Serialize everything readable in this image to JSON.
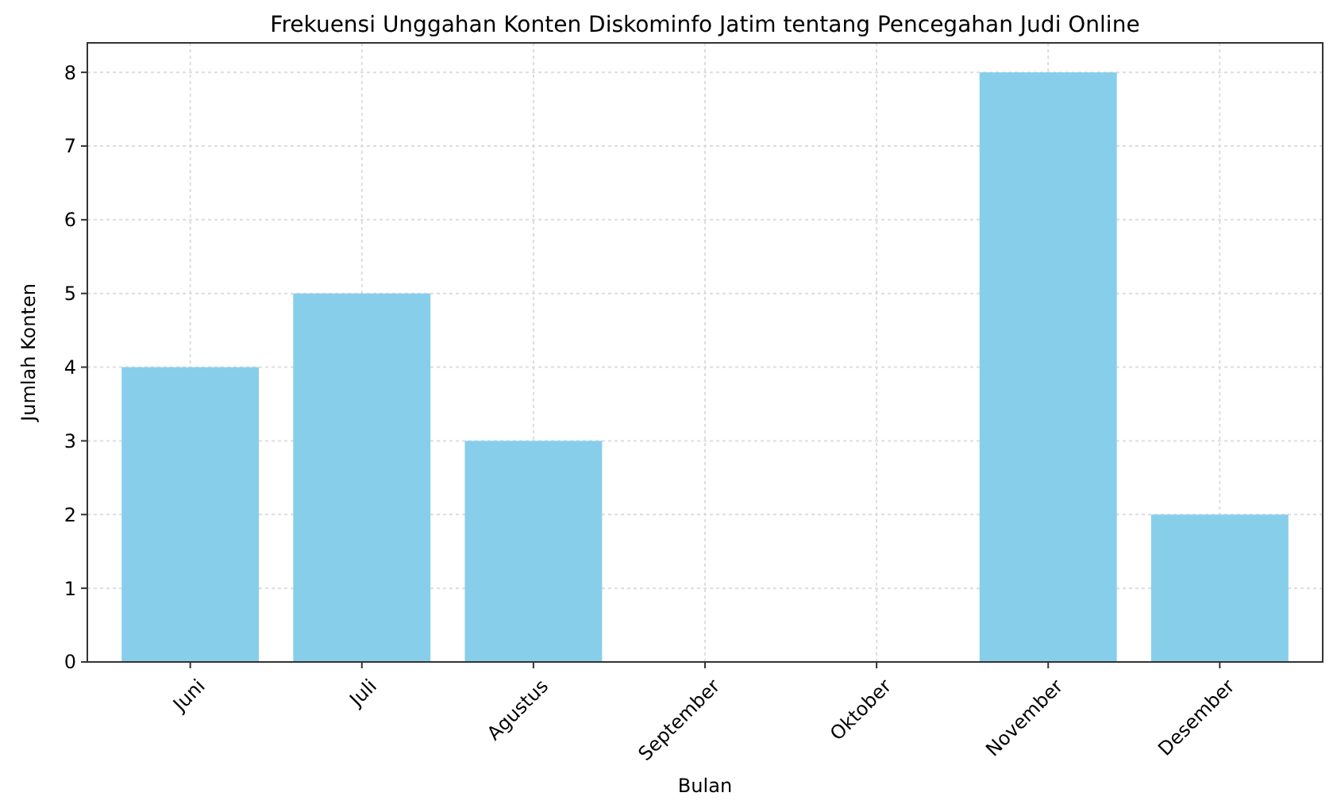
{
  "chart_data": {
    "type": "bar",
    "title": "Frekuensi Unggahan Konten Diskominfo Jatim tentang Pencegahan Judi Online",
    "xlabel": "Bulan",
    "ylabel": "Jumlah Konten",
    "categories": [
      "Juni",
      "Juli",
      "Agustus",
      "September",
      "Oktober",
      "November",
      "Desember"
    ],
    "values": [
      4,
      5,
      3,
      0,
      0,
      8,
      2
    ],
    "color": "#87ceeb",
    "ylim": [
      0,
      8.4
    ],
    "yticks": [
      0,
      1,
      2,
      3,
      4,
      5,
      6,
      7,
      8
    ],
    "grid": true
  }
}
